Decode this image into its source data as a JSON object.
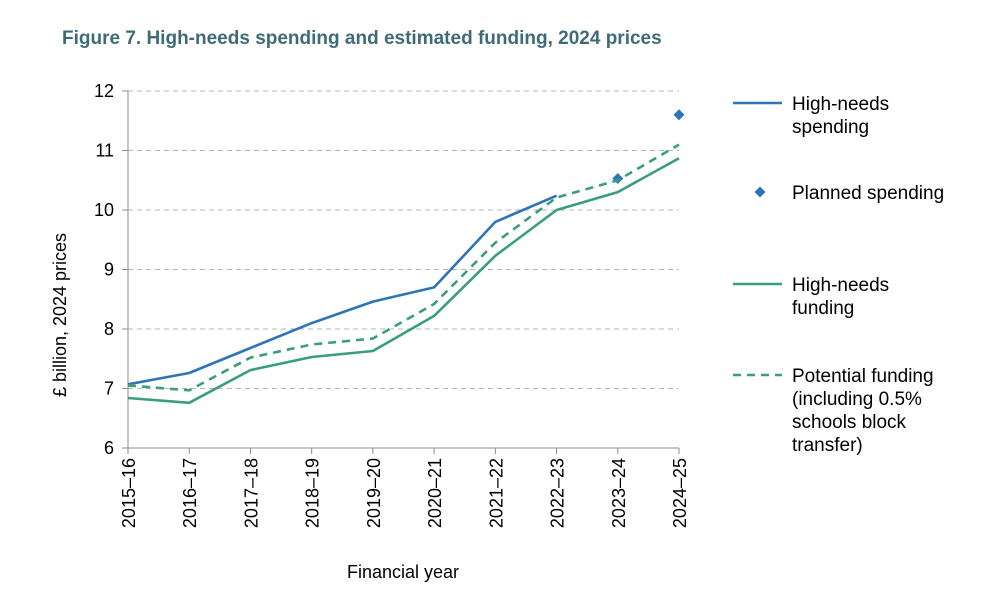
{
  "chart_data": {
    "type": "line",
    "title": "Figure 7. High-needs spending and estimated funding, 2024 prices",
    "xlabel": "Financial year",
    "ylabel": "£ billion, 2024 prices",
    "ylim": [
      6,
      12
    ],
    "yticks": [
      6,
      7,
      8,
      9,
      10,
      11,
      12
    ],
    "grid": true,
    "legend_position": "right",
    "categories": [
      "2015–16",
      "2016–17",
      "2017–18",
      "2018–19",
      "2019–20",
      "2020–21",
      "2021–22",
      "2022–23",
      "2023–24",
      "2024–25"
    ],
    "series": [
      {
        "key": "spending",
        "name": "High-needs spending",
        "legend_lines": [
          "High-needs",
          "spending"
        ],
        "style": "solid",
        "color": "#2e75b6",
        "values": [
          7.07,
          7.26,
          7.68,
          8.1,
          8.46,
          8.7,
          9.8,
          10.24,
          null,
          null
        ]
      },
      {
        "key": "planned",
        "name": "Planned spending",
        "legend_lines": [
          "Planned spending"
        ],
        "style": "marker",
        "color": "#2e75b6",
        "values": [
          null,
          null,
          null,
          null,
          null,
          null,
          null,
          null,
          10.53,
          11.6
        ]
      },
      {
        "key": "funding",
        "name": "High-needs funding",
        "legend_lines": [
          "High-needs",
          "funding"
        ],
        "style": "solid",
        "color": "#3a9e7b",
        "values": [
          6.84,
          6.76,
          7.31,
          7.53,
          7.63,
          8.22,
          9.23,
          10.0,
          10.3,
          10.87
        ]
      },
      {
        "key": "potential",
        "name": "Potential funding (including 0.5% schools block transfer)",
        "legend_lines": [
          "Potential funding",
          "(including 0.5%",
          "schools block",
          "transfer)"
        ],
        "style": "dashed",
        "color": "#3a9e7b",
        "values": [
          7.05,
          6.97,
          7.52,
          7.74,
          7.84,
          8.42,
          9.45,
          10.21,
          10.5,
          11.1
        ]
      }
    ]
  }
}
